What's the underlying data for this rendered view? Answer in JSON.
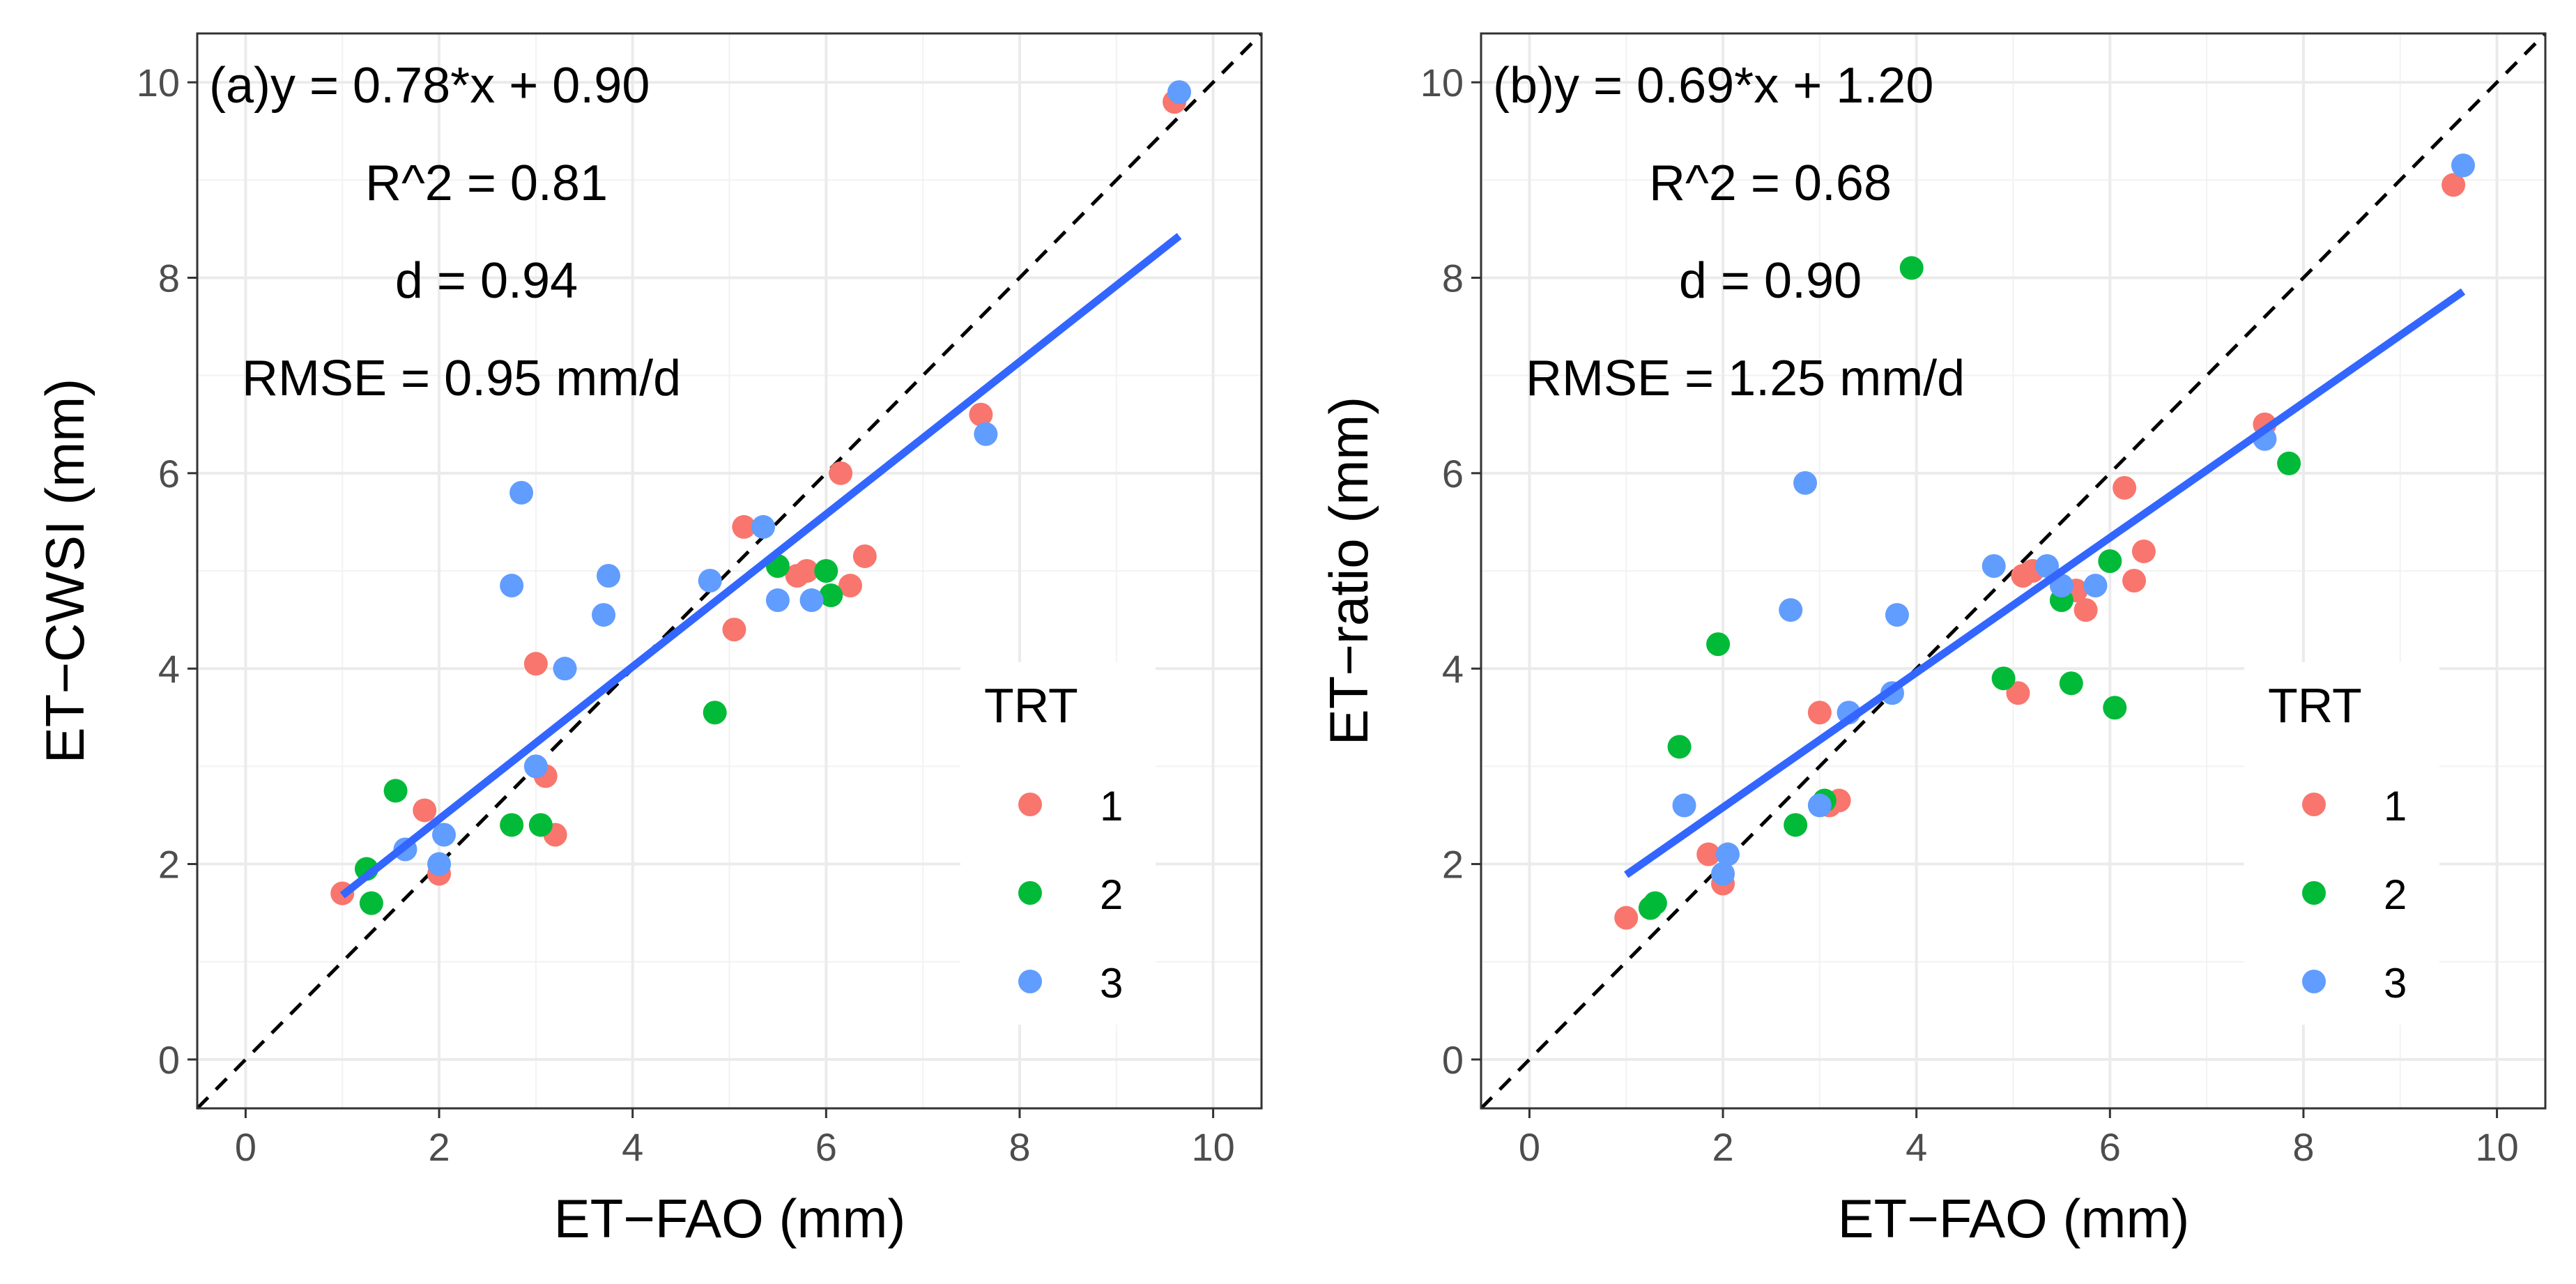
{
  "figure": {
    "description_free": true
  },
  "colors": {
    "trt1": "#F8766D",
    "trt2": "#00BA38",
    "trt3": "#619CFF",
    "fit_line": "#3366FF",
    "one_to_one": "#000000",
    "panel_bg": "#FFFFFF",
    "grid": "#EBEBEB",
    "axis_text": "#4D4D4D"
  },
  "chart_data": [
    {
      "type": "scatter",
      "panel": "a",
      "xlabel": "ET−FAO (mm)",
      "ylabel": "ET−CWSI (mm)",
      "xlim": [
        -0.5,
        10.5
      ],
      "ylim": [
        -0.5,
        10.5
      ],
      "x_ticks": [
        "0",
        "2",
        "4",
        "6",
        "8",
        "10"
      ],
      "y_ticks": [
        "0",
        "2",
        "4",
        "6",
        "8",
        "10"
      ],
      "annotations": [
        "(a)y = 0.78*x + 0.90",
        "R^2 = 0.81",
        "d = 0.94",
        "RMSE = 0.95 mm/d"
      ],
      "legend": {
        "title": "TRT",
        "entries": [
          "1",
          "2",
          "3"
        ],
        "placement": "bottom-right"
      },
      "fit": {
        "slope": 0.78,
        "intercept": 0.9,
        "x_range": [
          1.0,
          9.65
        ]
      },
      "reference_line": "1:1",
      "series": [
        {
          "name": "1",
          "points": [
            [
              1.0,
              1.7
            ],
            [
              1.85,
              2.55
            ],
            [
              2.0,
              1.9
            ],
            [
              3.0,
              4.05
            ],
            [
              3.1,
              2.9
            ],
            [
              3.2,
              2.3
            ],
            [
              5.05,
              4.4
            ],
            [
              5.15,
              5.45
            ],
            [
              5.7,
              4.95
            ],
            [
              5.8,
              5.0
            ],
            [
              6.15,
              6.0
            ],
            [
              6.25,
              4.85
            ],
            [
              6.4,
              5.15
            ],
            [
              7.6,
              6.6
            ],
            [
              9.6,
              9.8
            ]
          ]
        },
        {
          "name": "2",
          "points": [
            [
              1.25,
              1.95
            ],
            [
              1.3,
              1.6
            ],
            [
              1.55,
              2.75
            ],
            [
              2.75,
              2.4
            ],
            [
              3.05,
              2.4
            ],
            [
              4.85,
              3.55
            ],
            [
              5.5,
              5.05
            ],
            [
              6.0,
              5.0
            ],
            [
              6.05,
              4.75
            ]
          ]
        },
        {
          "name": "3",
          "points": [
            [
              1.65,
              2.15
            ],
            [
              2.0,
              2.0
            ],
            [
              2.05,
              2.3
            ],
            [
              2.75,
              4.85
            ],
            [
              2.85,
              5.8
            ],
            [
              3.0,
              3.0
            ],
            [
              3.3,
              4.0
            ],
            [
              3.7,
              4.55
            ],
            [
              3.75,
              4.95
            ],
            [
              4.8,
              4.9
            ],
            [
              5.35,
              5.45
            ],
            [
              5.5,
              4.7
            ],
            [
              5.85,
              4.7
            ],
            [
              7.65,
              6.4
            ],
            [
              9.65,
              9.9
            ]
          ]
        }
      ]
    },
    {
      "type": "scatter",
      "panel": "b",
      "xlabel": "ET−FAO (mm)",
      "ylabel": "ET−ratio (mm)",
      "xlim": [
        -0.5,
        10.5
      ],
      "ylim": [
        -0.5,
        10.5
      ],
      "x_ticks": [
        "0",
        "2",
        "4",
        "6",
        "8",
        "10"
      ],
      "y_ticks": [
        "0",
        "2",
        "4",
        "6",
        "8",
        "10"
      ],
      "annotations": [
        "(b)y = 0.69*x + 1.20",
        "R^2 = 0.68",
        "d = 0.90",
        "RMSE = 1.25 mm/d"
      ],
      "legend": {
        "title": "TRT",
        "entries": [
          "1",
          "2",
          "3"
        ],
        "placement": "bottom-right"
      },
      "fit": {
        "slope": 0.69,
        "intercept": 1.2,
        "x_range": [
          1.0,
          9.65
        ]
      },
      "reference_line": "1:1",
      "series": [
        {
          "name": "1",
          "points": [
            [
              1.0,
              1.45
            ],
            [
              1.85,
              2.1
            ],
            [
              2.0,
              1.8
            ],
            [
              3.0,
              3.55
            ],
            [
              3.1,
              2.6
            ],
            [
              3.2,
              2.65
            ],
            [
              5.05,
              3.75
            ],
            [
              5.1,
              4.95
            ],
            [
              5.2,
              5.0
            ],
            [
              5.65,
              4.8
            ],
            [
              5.75,
              4.6
            ],
            [
              6.15,
              5.85
            ],
            [
              6.25,
              4.9
            ],
            [
              6.35,
              5.2
            ],
            [
              7.6,
              6.5
            ],
            [
              9.55,
              8.95
            ]
          ]
        },
        {
          "name": "2",
          "points": [
            [
              1.25,
              1.55
            ],
            [
              1.3,
              1.6
            ],
            [
              1.55,
              3.2
            ],
            [
              1.95,
              4.25
            ],
            [
              2.75,
              2.4
            ],
            [
              3.05,
              2.65
            ],
            [
              3.95,
              8.1
            ],
            [
              4.9,
              3.9
            ],
            [
              5.5,
              4.7
            ],
            [
              5.6,
              3.85
            ],
            [
              6.0,
              5.1
            ],
            [
              6.05,
              3.6
            ],
            [
              7.85,
              6.1
            ]
          ]
        },
        {
          "name": "3",
          "points": [
            [
              1.6,
              2.6
            ],
            [
              2.0,
              1.9
            ],
            [
              2.05,
              2.1
            ],
            [
              2.7,
              4.6
            ],
            [
              2.85,
              5.9
            ],
            [
              3.0,
              2.6
            ],
            [
              3.3,
              3.55
            ],
            [
              3.75,
              3.75
            ],
            [
              3.8,
              4.55
            ],
            [
              4.8,
              5.05
            ],
            [
              5.35,
              5.05
            ],
            [
              5.5,
              4.85
            ],
            [
              5.85,
              4.85
            ],
            [
              7.6,
              6.35
            ],
            [
              9.65,
              9.15
            ]
          ]
        }
      ]
    }
  ]
}
